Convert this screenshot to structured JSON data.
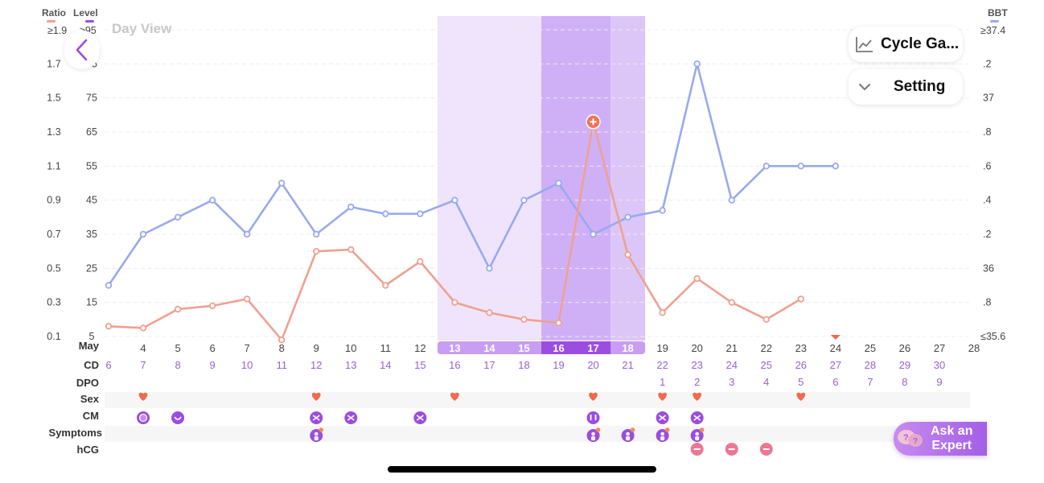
{
  "header": {
    "ratio_label": "Ratio",
    "level_label": "Level",
    "bbt_label": "BBT",
    "view_title": "Day View",
    "ratio_top": "≥1.9",
    "level_top": "≥95",
    "bbt_top": "≥37.4",
    "bbt_bottom": "≤35.6"
  },
  "buttons": {
    "cycle": "Cycle Ga...",
    "setting": "Setting",
    "ask_expert_line1": "Ask an",
    "ask_expert_line2": "Expert"
  },
  "row_labels": {
    "date": "May",
    "cd": "CD",
    "dpo": "DPO",
    "sex": "Sex",
    "cm": "CM",
    "symptoms": "Symptoms",
    "hcg": "hCG"
  },
  "colors": {
    "ratio": "#f0a090",
    "bbt": "#98aaee",
    "fertile_light": "#efe4fc",
    "fertile_mid": "#dcc6f8",
    "ovulation": "#cfb0f7",
    "purple": "#9b4de0",
    "heart": "#ef6b4f",
    "hcg": "#eb7893",
    "text_purple": "#9a5fd6"
  },
  "chart_data": {
    "type": "line",
    "title": "",
    "x": [
      3,
      4,
      5,
      6,
      7,
      8,
      9,
      10,
      11,
      12,
      13,
      14,
      15,
      16,
      17,
      18,
      19,
      20,
      21,
      22,
      23,
      24,
      25,
      26,
      27,
      28
    ],
    "x_range": [
      3,
      28
    ],
    "level_ylim": [
      5,
      95
    ],
    "ratio_ticks": [
      "0.1",
      "0.3",
      "0.5",
      "0.7",
      "0.9",
      "1.1",
      "1.3",
      "1.5",
      "1.7"
    ],
    "level_ticks": [
      "5",
      "15",
      "25",
      "35",
      "45",
      "55",
      "65",
      "75",
      "85"
    ],
    "bbt_ticks": [
      ".8",
      "36",
      ".2",
      ".4",
      ".6",
      ".8",
      "37",
      ".2"
    ],
    "series": [
      {
        "key": "bbt",
        "points": [
          [
            3,
            20
          ],
          [
            4,
            35
          ],
          [
            5,
            40
          ],
          [
            6,
            45
          ],
          [
            7,
            35
          ],
          [
            8,
            50
          ],
          [
            9,
            35
          ],
          [
            10,
            43
          ],
          [
            11,
            41
          ],
          [
            12,
            41
          ],
          [
            13,
            45
          ],
          [
            14,
            25
          ],
          [
            15,
            45
          ],
          [
            16,
            50
          ],
          [
            17,
            35
          ],
          [
            18,
            40
          ],
          [
            19,
            42
          ],
          [
            20,
            85
          ],
          [
            21,
            45
          ],
          [
            22,
            55
          ],
          [
            23,
            55
          ],
          [
            24,
            55
          ]
        ]
      },
      {
        "key": "ratio",
        "points": [
          [
            3,
            8
          ],
          [
            4,
            7.5
          ],
          [
            5,
            13
          ],
          [
            6,
            14
          ],
          [
            7,
            16
          ],
          [
            8,
            4
          ],
          [
            9,
            30
          ],
          [
            10,
            30.5
          ],
          [
            11,
            20
          ],
          [
            12,
            27
          ],
          [
            13,
            15
          ],
          [
            14,
            12
          ],
          [
            15,
            10
          ],
          [
            16,
            9
          ],
          [
            17,
            68
          ],
          [
            18,
            29
          ],
          [
            19,
            12
          ],
          [
            20,
            22
          ],
          [
            21,
            15
          ],
          [
            22,
            10
          ],
          [
            23,
            16
          ]
        ]
      }
    ],
    "peak_day": 17,
    "fertile_window": [
      13,
      18
    ],
    "ovulation_days": [
      16,
      17
    ],
    "predicted_marker_day": 24,
    "dates": [
      "4",
      "5",
      "6",
      "7",
      "8",
      "9",
      "10",
      "11",
      "12",
      "13",
      "14",
      "15",
      "16",
      "17",
      "18",
      "19",
      "20",
      "21",
      "22",
      "23",
      "24",
      "25",
      "26",
      "27",
      "28"
    ],
    "date_days": [
      4,
      5,
      6,
      7,
      8,
      9,
      10,
      11,
      12,
      13,
      14,
      15,
      16,
      17,
      18,
      19,
      20,
      21,
      22,
      23,
      24,
      25,
      26,
      27,
      28
    ],
    "cd": [
      "6",
      "7",
      "8",
      "9",
      "10",
      "11",
      "12",
      "13",
      "14",
      "15",
      "16",
      "17",
      "18",
      "19",
      "20",
      "21",
      "22",
      "23",
      "24",
      "25",
      "26",
      "27",
      "28",
      "29",
      "30"
    ],
    "cd_days": [
      3,
      4,
      5,
      6,
      7,
      8,
      9,
      10,
      11,
      12,
      13,
      14,
      15,
      16,
      17,
      18,
      19,
      20,
      21,
      22,
      23,
      24,
      25,
      26,
      27
    ],
    "dpo": [
      "1",
      "2",
      "3",
      "4",
      "5",
      "6",
      "7",
      "8",
      "9"
    ],
    "dpo_days": [
      19,
      20,
      21,
      22,
      23,
      24,
      25,
      26,
      27
    ],
    "sex_days": [
      4,
      9,
      13,
      17,
      19,
      20,
      23
    ],
    "cm": [
      [
        4,
        "dot"
      ],
      [
        5,
        "smile"
      ],
      [
        9,
        "cross"
      ],
      [
        10,
        "cross"
      ],
      [
        12,
        "cross"
      ],
      [
        17,
        "drop"
      ],
      [
        19,
        "cross"
      ],
      [
        20,
        "cross"
      ]
    ],
    "symptom_days": [
      9,
      17,
      18,
      19,
      20
    ],
    "hcg_days": [
      20,
      21,
      22
    ]
  }
}
